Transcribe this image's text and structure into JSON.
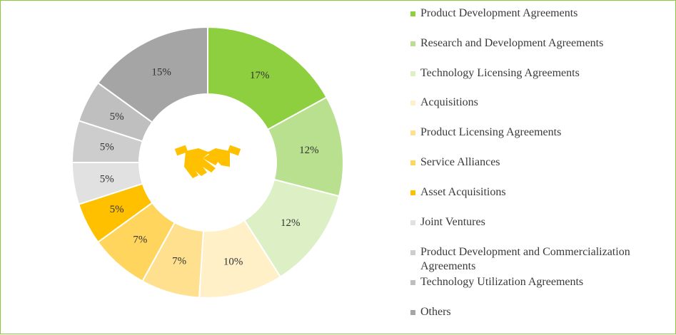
{
  "chart_data": {
    "type": "pie",
    "style": "donut",
    "legend_position": "right",
    "categories": [
      "Product Development Agreements",
      "Research and Development Agreements",
      "Technology Licensing Agreements",
      "Acquisitions",
      "Product Licensing Agreements",
      "Service Alliances",
      "Asset Acquisitions",
      "Joint Ventures",
      "Product Development and Commercialization Agreements",
      "Technology Utilization Agreements",
      "Others"
    ],
    "values": [
      17,
      12,
      12,
      10,
      7,
      7,
      5,
      5,
      5,
      5,
      15
    ],
    "value_labels": [
      "17%",
      "12%",
      "12%",
      "10%",
      "7%",
      "7%",
      "5%",
      "5%",
      "5%",
      "5%",
      "15%"
    ],
    "colors": [
      "#8dcf3f",
      "#b9e08e",
      "#ddf0c5",
      "#fff0c8",
      "#ffe08f",
      "#ffd55e",
      "#ffc000",
      "#e1e1e1",
      "#cdcdcd",
      "#bfbfbf",
      "#a5a5a5"
    ],
    "center_icon": "handshake-icon",
    "center_icon_color": "#ffc000"
  }
}
